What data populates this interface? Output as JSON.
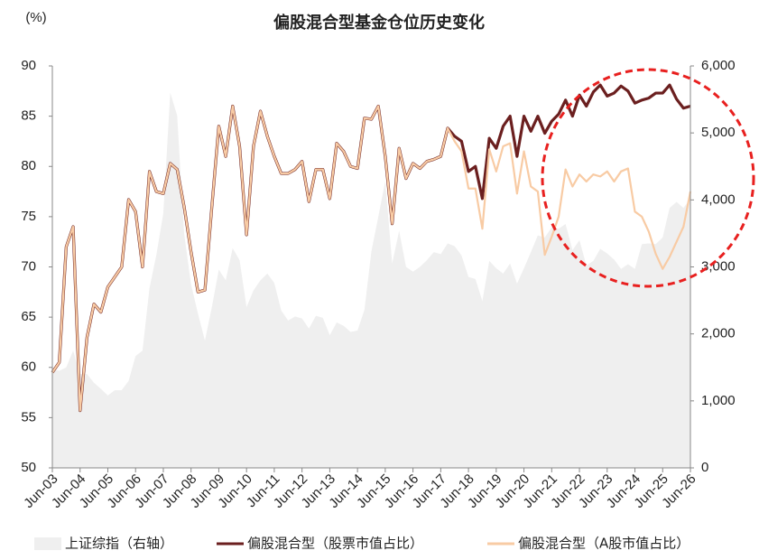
{
  "chart_data": {
    "type": "line",
    "title": "偏股混合型基金仓位历史变化",
    "y_label": "(%)",
    "categories": [
      "Jun-03",
      null,
      null,
      null,
      "Jun-04",
      null,
      null,
      null,
      "Jun-05",
      null,
      null,
      null,
      "Jun-06",
      null,
      null,
      null,
      "Jun-07",
      null,
      null,
      null,
      "Jun-08",
      null,
      null,
      null,
      "Jun-09",
      null,
      null,
      null,
      "Jun-10",
      null,
      null,
      null,
      "Jun-11",
      null,
      null,
      null,
      "Jun-12",
      null,
      null,
      null,
      "Jun-13",
      null,
      null,
      null,
      "Jun-14",
      null,
      null,
      null,
      "Jun-15",
      null,
      null,
      null,
      "Jun-16",
      null,
      null,
      null,
      "Jun-17",
      null,
      null,
      null,
      "Jun-18",
      null,
      null,
      null,
      "Jun-19",
      null,
      null,
      null,
      "Jun-20",
      null,
      null,
      null,
      "Jun-21",
      null,
      null,
      null,
      "Jun-22",
      null,
      null,
      null,
      "Jun-23",
      null,
      null,
      null,
      "Jun-24",
      null,
      null,
      null,
      "Jun-25",
      null,
      null,
      null,
      "Jun-26"
    ],
    "ylim": [
      50,
      90
    ],
    "yticks": [
      50,
      55,
      60,
      65,
      70,
      75,
      80,
      85,
      90
    ],
    "y2lim": [
      0,
      6000
    ],
    "y2ticks": [
      0,
      {
        "value": 1000,
        "label": "1,000"
      },
      {
        "value": 2000,
        "label": "2,000"
      },
      {
        "value": 3000,
        "label": "3,000"
      },
      {
        "value": 4000,
        "label": "4,000"
      },
      {
        "value": 5000,
        "label": "5,000"
      },
      {
        "value": 6000,
        "label": "6,000"
      }
    ],
    "grid": false,
    "legend": "bottom",
    "series": [
      {
        "name": "上证综指（右轴）",
        "type": "area",
        "axis": "y2",
        "color": "#efefef",
        "values": [
          1480,
          1450,
          1500,
          1750,
          1400,
          1400,
          1270,
          1180,
          1080,
          1160,
          1160,
          1300,
          1670,
          1750,
          2680,
          3180,
          3800,
          5600,
          5260,
          3500,
          2740,
          2300,
          1900,
          2400,
          2960,
          2800,
          3280,
          3100,
          2400,
          2650,
          2800,
          2900,
          2760,
          2350,
          2200,
          2260,
          2230,
          2080,
          2270,
          2240,
          1980,
          2170,
          2120,
          2030,
          2050,
          2360,
          3230,
          3750,
          4280,
          3050,
          3540,
          3000,
          2930,
          3000,
          3100,
          3220,
          3190,
          3350,
          3310,
          3170,
          2850,
          2820,
          2490,
          3090,
          2980,
          2900,
          3050,
          2750,
          2980,
          3220,
          3470,
          3440,
          3590,
          3570,
          3640,
          3250,
          3400,
          3020,
          3090,
          3270,
          3200,
          3110,
          2970,
          3040,
          2970,
          3340,
          3350,
          3340,
          3440,
          3880,
          3970,
          3880,
          4020
        ]
      },
      {
        "name": "偏股混合型（股票市值占比）",
        "type": "line",
        "color": "#6b1f1f",
        "values": [
          59.5,
          60.5,
          72,
          74,
          55.7,
          63,
          66.3,
          65.5,
          68,
          69,
          70,
          76.7,
          75.5,
          70,
          79.5,
          77.5,
          77.3,
          80.3,
          79.7,
          76,
          71.5,
          67.5,
          67.7,
          76,
          84,
          81,
          86,
          82,
          73.2,
          82,
          85.5,
          83,
          81,
          79.3,
          79.3,
          79.7,
          80.5,
          76.5,
          79.7,
          79.7,
          76.8,
          82.3,
          81.5,
          80,
          79.8,
          84.8,
          84.7,
          86,
          81,
          74.3,
          81.8,
          78.8,
          80.3,
          79.8,
          80.5,
          80.7,
          81,
          83.8,
          83,
          82.5,
          79.5,
          80,
          76.8,
          82.8,
          81.8,
          84,
          85,
          81,
          85,
          83.5,
          85,
          83.3,
          84.5,
          85.2,
          86.6,
          85,
          87.1,
          86,
          87.4,
          88.1,
          87,
          87.3,
          88,
          87.5,
          86.3,
          86.6,
          86.8,
          87.3,
          87.3,
          88.1,
          86.7,
          85.8,
          86
        ]
      },
      {
        "name": "偏股混合型（A股市值占比）",
        "type": "line",
        "color": "#f8cba4",
        "values": [
          59.5,
          60.5,
          72,
          74,
          55.7,
          63,
          66.3,
          65.5,
          68,
          69,
          70,
          76.7,
          75.5,
          70,
          79.5,
          77.5,
          77.3,
          80.3,
          79.7,
          76,
          71.5,
          67.5,
          67.7,
          76,
          84,
          81,
          86,
          82,
          73.2,
          82,
          85.5,
          83,
          81,
          79.3,
          79.3,
          79.7,
          80.5,
          76.5,
          79.7,
          79.7,
          76.8,
          82.3,
          81.5,
          80,
          79.8,
          84.8,
          84.7,
          86,
          81,
          74.3,
          81.8,
          78.8,
          80.3,
          79.8,
          80.5,
          80.7,
          81,
          83.8,
          82.5,
          81.5,
          77.8,
          77.8,
          73.8,
          81.7,
          79.5,
          82,
          82.3,
          77.3,
          81.5,
          78,
          77.5,
          71.2,
          73,
          75,
          79.7,
          78,
          79.2,
          78.5,
          79.2,
          79,
          79.5,
          78.5,
          79.5,
          79.8,
          75.5,
          75,
          73.5,
          71.3,
          69.8,
          71,
          72.5,
          74,
          77.5
        ]
      }
    ]
  }
}
